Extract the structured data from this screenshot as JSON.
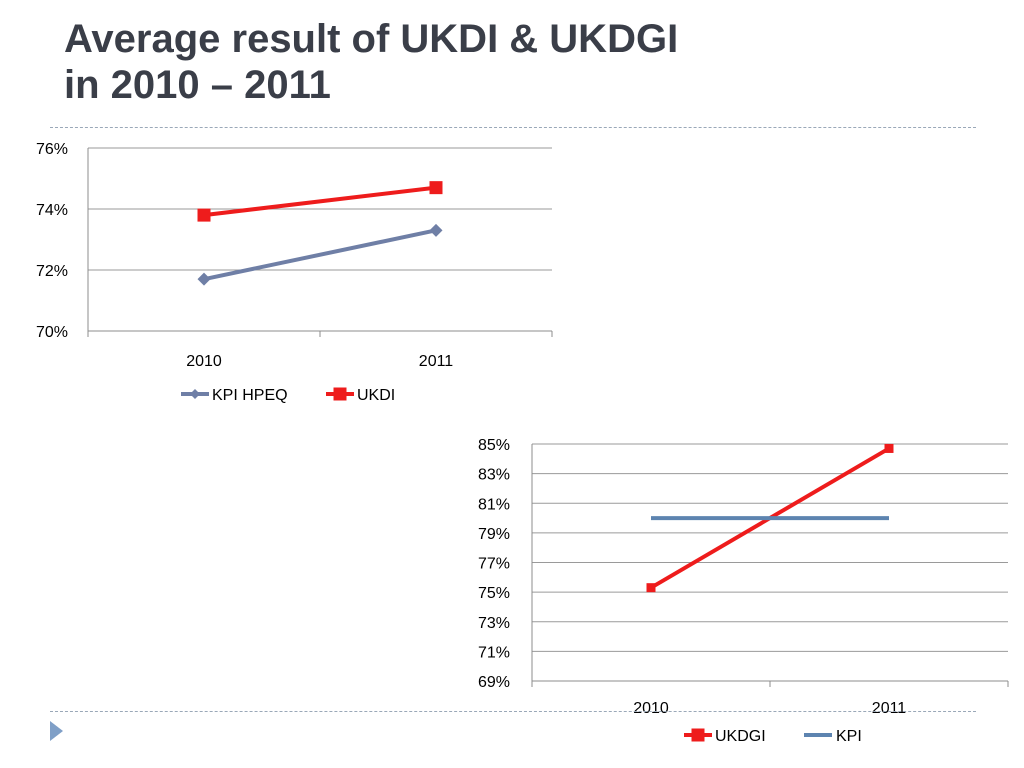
{
  "slide": {
    "title_line1": "Average result of UKDI & UKDGI",
    "title_line2": "in 2010 – 2011",
    "accent_color": "#7f9fc7"
  },
  "chart_data": [
    {
      "type": "line",
      "title": "",
      "xlabel": "",
      "ylabel": "",
      "categories": [
        "2010",
        "2011"
      ],
      "ylim": [
        70,
        76
      ],
      "yticks": [
        "70%",
        "72%",
        "74%",
        "76%"
      ],
      "grid": true,
      "legend": "bottom",
      "series": [
        {
          "name": "KPI HPEQ",
          "values": [
            71.7,
            73.3
          ],
          "color": "#6f7fa6",
          "marker": "diamond"
        },
        {
          "name": "UKDI",
          "values": [
            73.8,
            74.7
          ],
          "color": "#ee1c1c",
          "marker": "square"
        }
      ]
    },
    {
      "type": "line",
      "title": "",
      "xlabel": "",
      "ylabel": "",
      "categories": [
        "2010",
        "2011"
      ],
      "ylim": [
        69,
        85
      ],
      "yticks": [
        "69%",
        "71%",
        "73%",
        "75%",
        "77%",
        "79%",
        "81%",
        "83%",
        "85%"
      ],
      "grid": true,
      "legend": "bottom",
      "series": [
        {
          "name": "UKDGI",
          "values": [
            75.3,
            84.7
          ],
          "color": "#ee1c1c",
          "marker": "square"
        },
        {
          "name": "KPI",
          "values": [
            80,
            80
          ],
          "color": "#5d84b0",
          "marker": "none"
        }
      ]
    }
  ]
}
